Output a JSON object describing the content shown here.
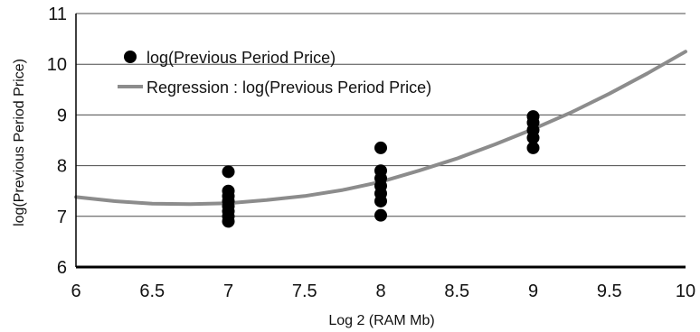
{
  "chart_data": {
    "type": "scatter",
    "xlabel": "Log 2 (RAM Mb)",
    "ylabel": "log(Previous Period Price)",
    "xlim": [
      6,
      10
    ],
    "ylim": [
      6,
      11
    ],
    "x_ticks": [
      "6",
      "6.5",
      "7",
      "7.5",
      "8",
      "8.5",
      "9",
      "9.5",
      "10"
    ],
    "y_ticks": [
      "6",
      "7",
      "8",
      "9",
      "10",
      "11"
    ],
    "grid": "horizontal",
    "legend_position": "top-left",
    "series": [
      {
        "name": "log(Previous Period Price)",
        "kind": "scatter",
        "color": "#000000",
        "points": [
          {
            "x": 7,
            "y": 6.9
          },
          {
            "x": 7,
            "y": 7.0
          },
          {
            "x": 7,
            "y": 7.1
          },
          {
            "x": 7,
            "y": 7.2
          },
          {
            "x": 7,
            "y": 7.3
          },
          {
            "x": 7,
            "y": 7.4
          },
          {
            "x": 7,
            "y": 7.5
          },
          {
            "x": 7,
            "y": 7.88
          },
          {
            "x": 8,
            "y": 7.02
          },
          {
            "x": 8,
            "y": 7.3
          },
          {
            "x": 8,
            "y": 7.45
          },
          {
            "x": 8,
            "y": 7.6
          },
          {
            "x": 8,
            "y": 7.75
          },
          {
            "x": 8,
            "y": 7.9
          },
          {
            "x": 8,
            "y": 8.35
          },
          {
            "x": 9,
            "y": 8.35
          },
          {
            "x": 9,
            "y": 8.55
          },
          {
            "x": 9,
            "y": 8.7
          },
          {
            "x": 9,
            "y": 8.85
          },
          {
            "x": 9,
            "y": 8.97
          }
        ]
      },
      {
        "name": "Regression : log(Previous Period Price)",
        "kind": "line",
        "color": "#8c8c8c",
        "points": [
          {
            "x": 6.0,
            "y": 7.38
          },
          {
            "x": 6.25,
            "y": 7.3
          },
          {
            "x": 6.5,
            "y": 7.25
          },
          {
            "x": 6.75,
            "y": 7.24
          },
          {
            "x": 7.0,
            "y": 7.26
          },
          {
            "x": 7.25,
            "y": 7.32
          },
          {
            "x": 7.5,
            "y": 7.4
          },
          {
            "x": 7.75,
            "y": 7.52
          },
          {
            "x": 8.0,
            "y": 7.68
          },
          {
            "x": 8.25,
            "y": 7.9
          },
          {
            "x": 8.5,
            "y": 8.14
          },
          {
            "x": 8.75,
            "y": 8.42
          },
          {
            "x": 9.0,
            "y": 8.72
          },
          {
            "x": 9.25,
            "y": 9.05
          },
          {
            "x": 9.5,
            "y": 9.42
          },
          {
            "x": 9.75,
            "y": 9.82
          },
          {
            "x": 10.0,
            "y": 10.25
          }
        ]
      }
    ]
  }
}
